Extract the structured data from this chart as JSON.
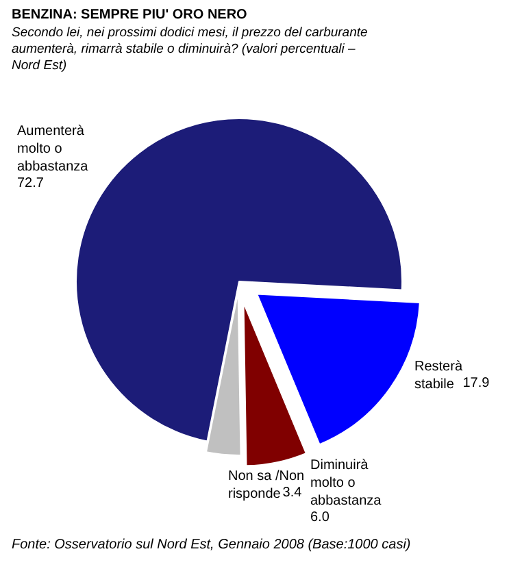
{
  "chart_data": {
    "type": "pie",
    "title": "BENZINA: SEMPRE PIU' ORO NERO",
    "subtitle": "Secondo lei, nei prossimi dodici mesi, il prezzo del carburante aumenterà, rimarrà stabile o diminuirà? (valori percentuali – Nord Est)",
    "categories": [
      "Aumenterà molto o abbastanza",
      "Non sa /Non risponde",
      "Diminuirà molto o abbastanza",
      "Resterà stabile"
    ],
    "values": [
      72.7,
      3.4,
      6.0,
      17.9
    ],
    "colors": [
      "#1c1c78",
      "#c0c0c0",
      "#800000",
      "#0000ff"
    ],
    "value_labels": [
      "72.7",
      "3.4",
      "6.0",
      "17.9"
    ],
    "annotations": [
      "Fonte: Osservatorio sul Nord Est, Gennaio 2008 (Base:1000 casi)"
    ]
  }
}
